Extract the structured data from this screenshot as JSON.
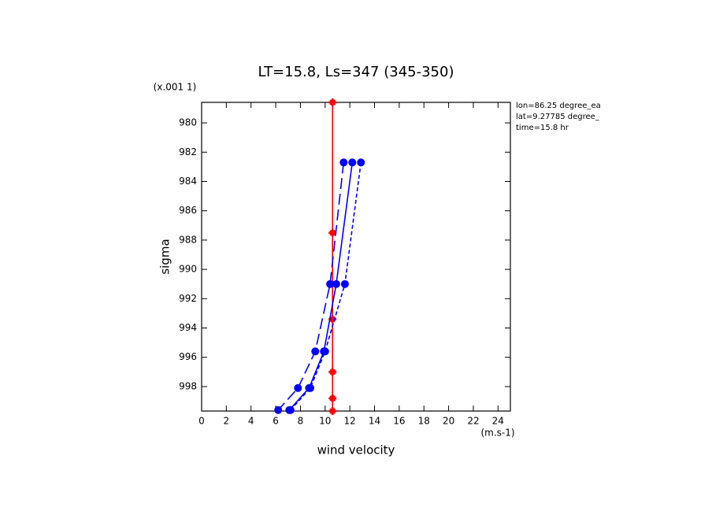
{
  "chart_data": {
    "type": "line",
    "title": "LT=15.8, Ls=347 (345-350)",
    "x_label": "wind velocity",
    "x_unit": "(m.s-1)",
    "y_label": "sigma",
    "y_unit": "(x.001 1)",
    "annotations": [
      "lon=86.25 degree_ea",
      "lat=9.27785 degree_",
      "time=15.8 hr"
    ],
    "xlim": [
      0,
      25
    ],
    "xticks": [
      0,
      2,
      4,
      6,
      8,
      10,
      12,
      14,
      16,
      18,
      20,
      22,
      24
    ],
    "ylim": [
      999.67,
      978.6
    ],
    "yticks": [
      980,
      982,
      984,
      986,
      988,
      990,
      992,
      994,
      996,
      998
    ],
    "series": [
      {
        "color": "#ff0000",
        "dash": "solid",
        "marker": "plus",
        "values": [
          10.6,
          10.6,
          10.6,
          10.6,
          10.6,
          10.6
        ],
        "sigma": [
          978.6,
          987.5,
          993.4,
          997.0,
          998.8,
          999.67
        ]
      },
      {
        "color": "#0000ff",
        "dash": "long",
        "marker": "dot",
        "values": [
          11.5,
          10.4,
          9.2,
          7.8,
          6.2
        ],
        "sigma": [
          982.7,
          991.0,
          995.6,
          998.1,
          999.6
        ]
      },
      {
        "color": "#0000ff",
        "dash": "solid",
        "marker": "dot",
        "values": [
          12.2,
          10.9,
          9.9,
          8.7,
          7.1
        ],
        "sigma": [
          982.7,
          991.0,
          995.6,
          998.1,
          999.6
        ]
      },
      {
        "color": "#0000ff",
        "dash": "short",
        "marker": "dot",
        "values": [
          12.9,
          11.6,
          10.0,
          8.8,
          7.2
        ],
        "sigma": [
          982.7,
          991.0,
          995.6,
          998.1,
          999.6
        ]
      }
    ]
  }
}
